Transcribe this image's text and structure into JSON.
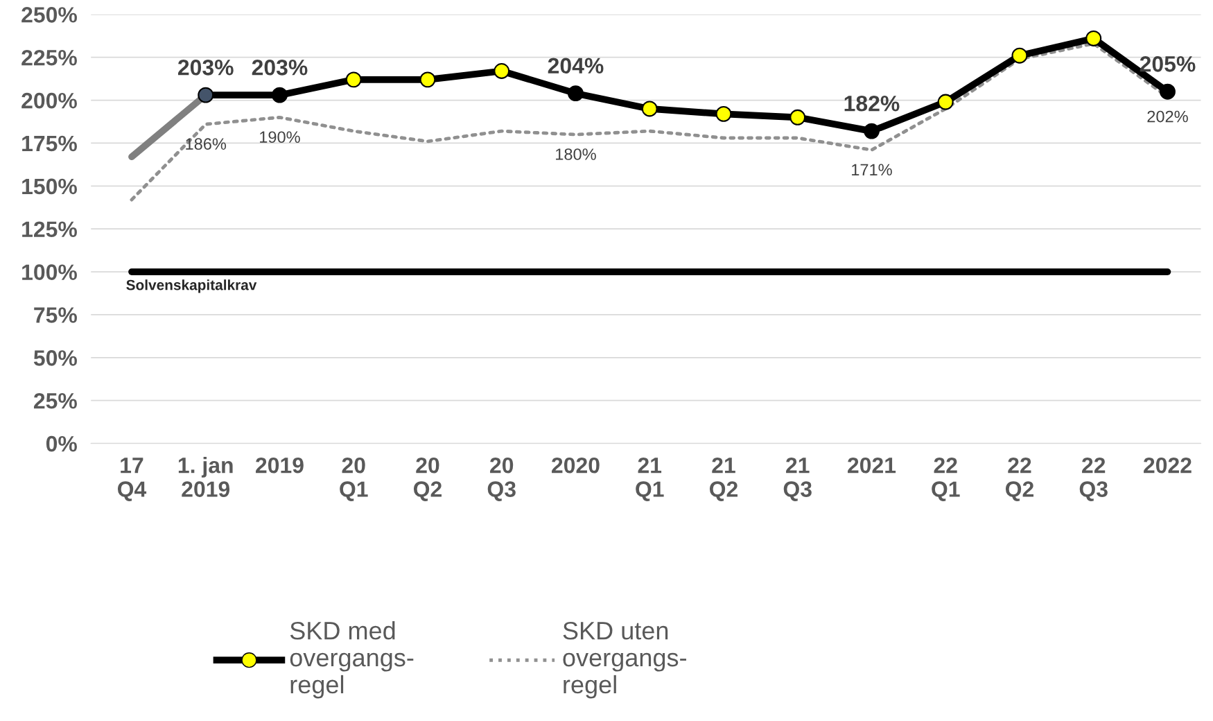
{
  "chart_data": {
    "type": "line",
    "categories": [
      "17\nQ4",
      "1. jan\n2019",
      "2019",
      "20\nQ1",
      "20\nQ2",
      "20\nQ3",
      "2020",
      "21\nQ1",
      "21\nQ2",
      "21\nQ3",
      "2021",
      "22\nQ1",
      "22\nQ2",
      "22\nQ3",
      "2022"
    ],
    "series": [
      {
        "color": "#808080",
        "marker": "none",
        "line_style": "solid",
        "values": [
          167,
          203,
          null,
          null,
          null,
          null,
          null,
          null,
          null,
          null,
          null,
          null,
          null,
          null,
          null
        ]
      },
      {
        "name": "SKD med\novergangs-\nregel",
        "color": "#000000",
        "marker": "circle",
        "line_style": "solid",
        "values": [
          null,
          203,
          203,
          212,
          212,
          217,
          204,
          195,
          192,
          190,
          182,
          199,
          226,
          236,
          205
        ],
        "colors": [
          null,
          "#44546a",
          "#000000",
          "#ffff00",
          "#ffff00",
          "#ffff00",
          "#000000",
          "#ffff00",
          "#ffff00",
          "#ffff00",
          "#000000",
          "#ffff00",
          "#ffff00",
          "#ffff00",
          "#000000"
        ],
        "value_labels": [
          null,
          "203%",
          "203%",
          null,
          null,
          null,
          "204%",
          null,
          null,
          null,
          "182%",
          null,
          null,
          null,
          "205%"
        ]
      },
      {
        "name": "SKD uten\novergangs-\nregel",
        "color": "#909090",
        "marker": "none",
        "line_style": "dotted",
        "values": [
          142,
          186,
          190,
          182,
          176,
          182,
          180,
          182,
          178,
          178,
          171,
          195,
          224,
          233,
          202
        ],
        "value_labels": [
          null,
          "186%",
          "190%",
          null,
          null,
          null,
          "180%",
          null,
          null,
          null,
          "171%",
          null,
          null,
          null,
          "202%"
        ]
      }
    ],
    "ylim": [
      0,
      250
    ],
    "yticks": [
      {
        "value": 0,
        "label": "0%"
      },
      {
        "value": 25,
        "label": "25%"
      },
      {
        "value": 50,
        "label": "50%"
      },
      {
        "value": 75,
        "label": "75%"
      },
      {
        "value": 100,
        "label": "100%"
      },
      {
        "value": 125,
        "label": "125%"
      },
      {
        "value": 150,
        "label": "150%"
      },
      {
        "value": 175,
        "label": "175%"
      },
      {
        "value": 200,
        "label": "200%"
      },
      {
        "value": 225,
        "label": "225%"
      },
      {
        "value": 250,
        "label": "250%"
      }
    ],
    "ref_lines": [
      {
        "axis": "y",
        "value": 100,
        "label": "Solvenskapitalkrav",
        "color": "#000000",
        "line_style": "solid"
      }
    ],
    "grid": "y",
    "legend": "bottom"
  }
}
